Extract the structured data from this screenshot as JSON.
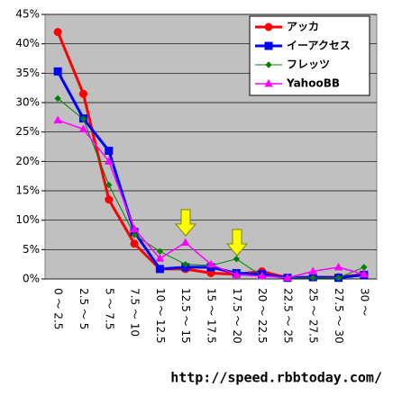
{
  "chart_data": {
    "type": "line",
    "categories": [
      "0 ～ 2.5",
      "2.5 ～ 5",
      "5 ～ 7.5",
      "7.5 ～ 10",
      "10 ～ 12.5",
      "12.5 ～ 15",
      "15 ～ 17.5",
      "17.5 ～ 20",
      "20 ～ 22.5",
      "22.5 ～ 25",
      "25 ～ 27.5",
      "27.5 ～ 30",
      "30 ～"
    ],
    "series": [
      {
        "name": "アッカ",
        "color": "#ff0000",
        "marker": "circle",
        "values": [
          42,
          31.5,
          13.5,
          6,
          1.7,
          1.7,
          1.0,
          0.8,
          1.3,
          0.2,
          0.3,
          0.3,
          0.8
        ]
      },
      {
        "name": "イーアクセス",
        "color": "#0000ff",
        "marker": "square",
        "values": [
          35.3,
          27.3,
          21.8,
          8,
          1.7,
          2.0,
          2.0,
          1.0,
          0.8,
          0.2,
          0.3,
          0.2,
          0.7
        ]
      },
      {
        "name": "フレッツ",
        "color": "#008000",
        "marker": "diamond",
        "values": [
          30.7,
          27.2,
          16,
          7.5,
          4.7,
          2.5,
          2.3,
          3.4,
          0.5,
          0.2,
          0.2,
          0.2,
          2.0
        ]
      },
      {
        "name": "YahooBB",
        "color": "#ff00ff",
        "marker": "triangle",
        "values": [
          27,
          25.5,
          20,
          8.5,
          3.5,
          6.2,
          2.5,
          0.7,
          0.5,
          0.2,
          1.3,
          2.0,
          0.8
        ]
      }
    ],
    "ylim": [
      0,
      45
    ],
    "yticks": [
      {
        "value": 0,
        "label": "0%"
      },
      {
        "value": 5,
        "label": "5%"
      },
      {
        "value": 10,
        "label": "10%"
      },
      {
        "value": 15,
        "label": "15%"
      },
      {
        "value": 20,
        "label": "20%"
      },
      {
        "value": 25,
        "label": "25%"
      },
      {
        "value": 30,
        "label": "30%"
      },
      {
        "value": 35,
        "label": "35%"
      },
      {
        "value": 40,
        "label": "40%"
      },
      {
        "value": 45,
        "label": "45%"
      }
    ],
    "grid": true,
    "legend": "top-right",
    "source": "http://speed.rbbtoday.com/"
  }
}
